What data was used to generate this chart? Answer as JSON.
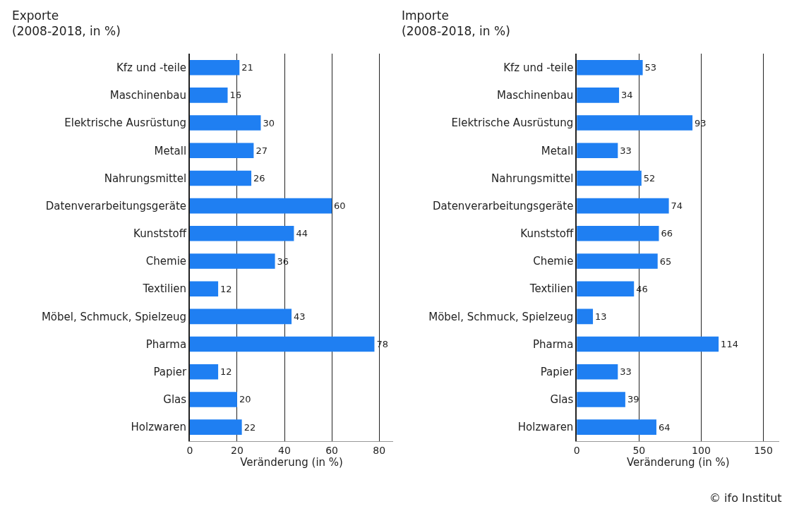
{
  "chart_data": [
    {
      "type": "bar",
      "orientation": "horizontal",
      "title": "Exporte\n(2008-2018, in %)",
      "xlabel": "Veränderung (in %)",
      "categories": [
        "Kfz und -teile",
        "Maschinenbau",
        "Elektrische Ausrüstung",
        "Metall",
        "Nahrungsmittel",
        "Datenverarbeitungsgeräte",
        "Kunststoff",
        "Chemie",
        "Textilien",
        "Möbel, Schmuck, Spielzeug",
        "Pharma",
        "Papier",
        "Glas",
        "Holzwaren"
      ],
      "values": [
        21,
        16,
        30,
        27,
        26,
        60,
        44,
        36,
        12,
        43,
        78,
        12,
        20,
        22
      ],
      "color": "#1f7ff2",
      "xlim": [
        0,
        86
      ],
      "xticks": [
        0,
        20,
        40,
        60,
        80
      ],
      "grid": "x",
      "data_labels": true,
      "legend": false
    },
    {
      "type": "bar",
      "orientation": "horizontal",
      "title": "Importe\n(2008-2018, in %)",
      "xlabel": "Veränderung (in %)",
      "categories": [
        "Kfz und -teile",
        "Maschinenbau",
        "Elektrische Ausrüstung",
        "Metall",
        "Nahrungsmittel",
        "Datenverarbeitungsgeräte",
        "Kunststoff",
        "Chemie",
        "Textilien",
        "Möbel, Schmuck, Spielzeug",
        "Pharma",
        "Papier",
        "Glas",
        "Holzwaren"
      ],
      "values": [
        53,
        34,
        93,
        33,
        52,
        74,
        66,
        65,
        46,
        13,
        114,
        33,
        39,
        64
      ],
      "color": "#1f7ff2",
      "xlim": [
        0,
        163
      ],
      "xticks": [
        0,
        50,
        100,
        150
      ],
      "grid": "x",
      "data_labels": true,
      "legend": false,
      "annotations": [
        "© ifo Institut"
      ]
    }
  ]
}
